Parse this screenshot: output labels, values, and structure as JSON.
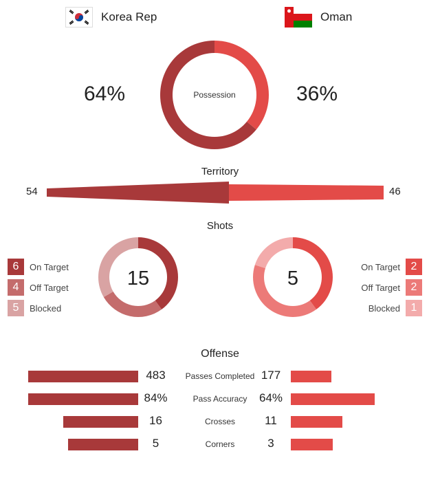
{
  "teams": {
    "home": {
      "name": "Korea Rep",
      "flag_icon": "korea-flag",
      "color": "#a8393a"
    },
    "away": {
      "name": "Oman",
      "flag_icon": "oman-flag",
      "color": "#e34b48"
    }
  },
  "possession": {
    "label": "Possession",
    "home": "64%",
    "away": "36%",
    "home_value": 64,
    "away_value": 36
  },
  "territory": {
    "title": "Territory",
    "home": "54",
    "away": "46",
    "home_value": 54,
    "away_value": 46
  },
  "shots": {
    "title": "Shots",
    "home": {
      "total": "15",
      "on_target": "6",
      "off_target": "4",
      "blocked": "5"
    },
    "away": {
      "total": "5",
      "on_target": "2",
      "off_target": "2",
      "blocked": "1"
    },
    "labels": {
      "on_target": "On Target",
      "off_target": "Off Target",
      "blocked": "Blocked"
    },
    "colors": {
      "home": [
        "#a8393a",
        "#c46c6c",
        "#d9a3a3"
      ],
      "away": [
        "#e34b48",
        "#ec7a78",
        "#f3abab"
      ]
    }
  },
  "offense": {
    "title": "Offense",
    "rows": [
      {
        "label": "Passes Completed",
        "home": "483",
        "away": "177",
        "home_value": 483,
        "away_value": 177,
        "max": 483
      },
      {
        "label": "Pass Accuracy",
        "home": "84%",
        "away": "64%",
        "home_value": 84,
        "away_value": 64,
        "max": 84
      },
      {
        "label": "Crosses",
        "home": "16",
        "away": "11",
        "home_value": 16,
        "away_value": 11,
        "max": 23.4
      },
      {
        "label": "Corners",
        "home": "5",
        "away": "3",
        "home_value": 5,
        "away_value": 3,
        "max": 7.85
      }
    ]
  }
}
